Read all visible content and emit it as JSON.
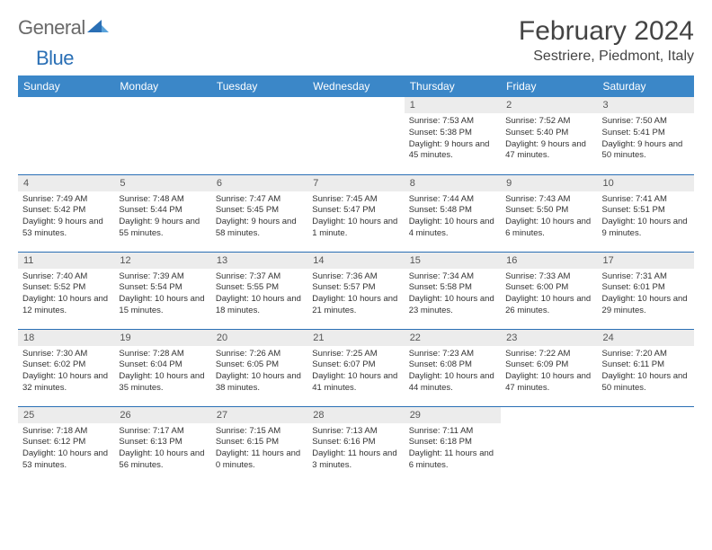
{
  "logo": {
    "general": "General",
    "blue": "Blue"
  },
  "title": "February 2024",
  "location": "Sestriere, Piedmont, Italy",
  "colors": {
    "header_bg": "#3b87c8",
    "header_text": "#ffffff",
    "daynum_bg": "#ececec",
    "border": "#2a6fb5",
    "text": "#333333",
    "logo_gray": "#6a6a6a",
    "logo_blue": "#2a6fb5",
    "background": "#ffffff"
  },
  "typography": {
    "title_size_pt": 22,
    "location_size_pt": 12,
    "header_size_pt": 9,
    "cell_size_pt": 7,
    "daynum_size_pt": 8
  },
  "weekdays": [
    "Sunday",
    "Monday",
    "Tuesday",
    "Wednesday",
    "Thursday",
    "Friday",
    "Saturday"
  ],
  "weeks": [
    [
      {
        "blank": true
      },
      {
        "blank": true
      },
      {
        "blank": true
      },
      {
        "blank": true
      },
      {
        "day": "1",
        "sunrise": "Sunrise: 7:53 AM",
        "sunset": "Sunset: 5:38 PM",
        "daylight": "Daylight: 9 hours and 45 minutes."
      },
      {
        "day": "2",
        "sunrise": "Sunrise: 7:52 AM",
        "sunset": "Sunset: 5:40 PM",
        "daylight": "Daylight: 9 hours and 47 minutes."
      },
      {
        "day": "3",
        "sunrise": "Sunrise: 7:50 AM",
        "sunset": "Sunset: 5:41 PM",
        "daylight": "Daylight: 9 hours and 50 minutes."
      }
    ],
    [
      {
        "day": "4",
        "sunrise": "Sunrise: 7:49 AM",
        "sunset": "Sunset: 5:42 PM",
        "daylight": "Daylight: 9 hours and 53 minutes."
      },
      {
        "day": "5",
        "sunrise": "Sunrise: 7:48 AM",
        "sunset": "Sunset: 5:44 PM",
        "daylight": "Daylight: 9 hours and 55 minutes."
      },
      {
        "day": "6",
        "sunrise": "Sunrise: 7:47 AM",
        "sunset": "Sunset: 5:45 PM",
        "daylight": "Daylight: 9 hours and 58 minutes."
      },
      {
        "day": "7",
        "sunrise": "Sunrise: 7:45 AM",
        "sunset": "Sunset: 5:47 PM",
        "daylight": "Daylight: 10 hours and 1 minute."
      },
      {
        "day": "8",
        "sunrise": "Sunrise: 7:44 AM",
        "sunset": "Sunset: 5:48 PM",
        "daylight": "Daylight: 10 hours and 4 minutes."
      },
      {
        "day": "9",
        "sunrise": "Sunrise: 7:43 AM",
        "sunset": "Sunset: 5:50 PM",
        "daylight": "Daylight: 10 hours and 6 minutes."
      },
      {
        "day": "10",
        "sunrise": "Sunrise: 7:41 AM",
        "sunset": "Sunset: 5:51 PM",
        "daylight": "Daylight: 10 hours and 9 minutes."
      }
    ],
    [
      {
        "day": "11",
        "sunrise": "Sunrise: 7:40 AM",
        "sunset": "Sunset: 5:52 PM",
        "daylight": "Daylight: 10 hours and 12 minutes."
      },
      {
        "day": "12",
        "sunrise": "Sunrise: 7:39 AM",
        "sunset": "Sunset: 5:54 PM",
        "daylight": "Daylight: 10 hours and 15 minutes."
      },
      {
        "day": "13",
        "sunrise": "Sunrise: 7:37 AM",
        "sunset": "Sunset: 5:55 PM",
        "daylight": "Daylight: 10 hours and 18 minutes."
      },
      {
        "day": "14",
        "sunrise": "Sunrise: 7:36 AM",
        "sunset": "Sunset: 5:57 PM",
        "daylight": "Daylight: 10 hours and 21 minutes."
      },
      {
        "day": "15",
        "sunrise": "Sunrise: 7:34 AM",
        "sunset": "Sunset: 5:58 PM",
        "daylight": "Daylight: 10 hours and 23 minutes."
      },
      {
        "day": "16",
        "sunrise": "Sunrise: 7:33 AM",
        "sunset": "Sunset: 6:00 PM",
        "daylight": "Daylight: 10 hours and 26 minutes."
      },
      {
        "day": "17",
        "sunrise": "Sunrise: 7:31 AM",
        "sunset": "Sunset: 6:01 PM",
        "daylight": "Daylight: 10 hours and 29 minutes."
      }
    ],
    [
      {
        "day": "18",
        "sunrise": "Sunrise: 7:30 AM",
        "sunset": "Sunset: 6:02 PM",
        "daylight": "Daylight: 10 hours and 32 minutes."
      },
      {
        "day": "19",
        "sunrise": "Sunrise: 7:28 AM",
        "sunset": "Sunset: 6:04 PM",
        "daylight": "Daylight: 10 hours and 35 minutes."
      },
      {
        "day": "20",
        "sunrise": "Sunrise: 7:26 AM",
        "sunset": "Sunset: 6:05 PM",
        "daylight": "Daylight: 10 hours and 38 minutes."
      },
      {
        "day": "21",
        "sunrise": "Sunrise: 7:25 AM",
        "sunset": "Sunset: 6:07 PM",
        "daylight": "Daylight: 10 hours and 41 minutes."
      },
      {
        "day": "22",
        "sunrise": "Sunrise: 7:23 AM",
        "sunset": "Sunset: 6:08 PM",
        "daylight": "Daylight: 10 hours and 44 minutes."
      },
      {
        "day": "23",
        "sunrise": "Sunrise: 7:22 AM",
        "sunset": "Sunset: 6:09 PM",
        "daylight": "Daylight: 10 hours and 47 minutes."
      },
      {
        "day": "24",
        "sunrise": "Sunrise: 7:20 AM",
        "sunset": "Sunset: 6:11 PM",
        "daylight": "Daylight: 10 hours and 50 minutes."
      }
    ],
    [
      {
        "day": "25",
        "sunrise": "Sunrise: 7:18 AM",
        "sunset": "Sunset: 6:12 PM",
        "daylight": "Daylight: 10 hours and 53 minutes."
      },
      {
        "day": "26",
        "sunrise": "Sunrise: 7:17 AM",
        "sunset": "Sunset: 6:13 PM",
        "daylight": "Daylight: 10 hours and 56 minutes."
      },
      {
        "day": "27",
        "sunrise": "Sunrise: 7:15 AM",
        "sunset": "Sunset: 6:15 PM",
        "daylight": "Daylight: 11 hours and 0 minutes."
      },
      {
        "day": "28",
        "sunrise": "Sunrise: 7:13 AM",
        "sunset": "Sunset: 6:16 PM",
        "daylight": "Daylight: 11 hours and 3 minutes."
      },
      {
        "day": "29",
        "sunrise": "Sunrise: 7:11 AM",
        "sunset": "Sunset: 6:18 PM",
        "daylight": "Daylight: 11 hours and 6 minutes."
      },
      {
        "blank": true
      },
      {
        "blank": true
      }
    ]
  ]
}
